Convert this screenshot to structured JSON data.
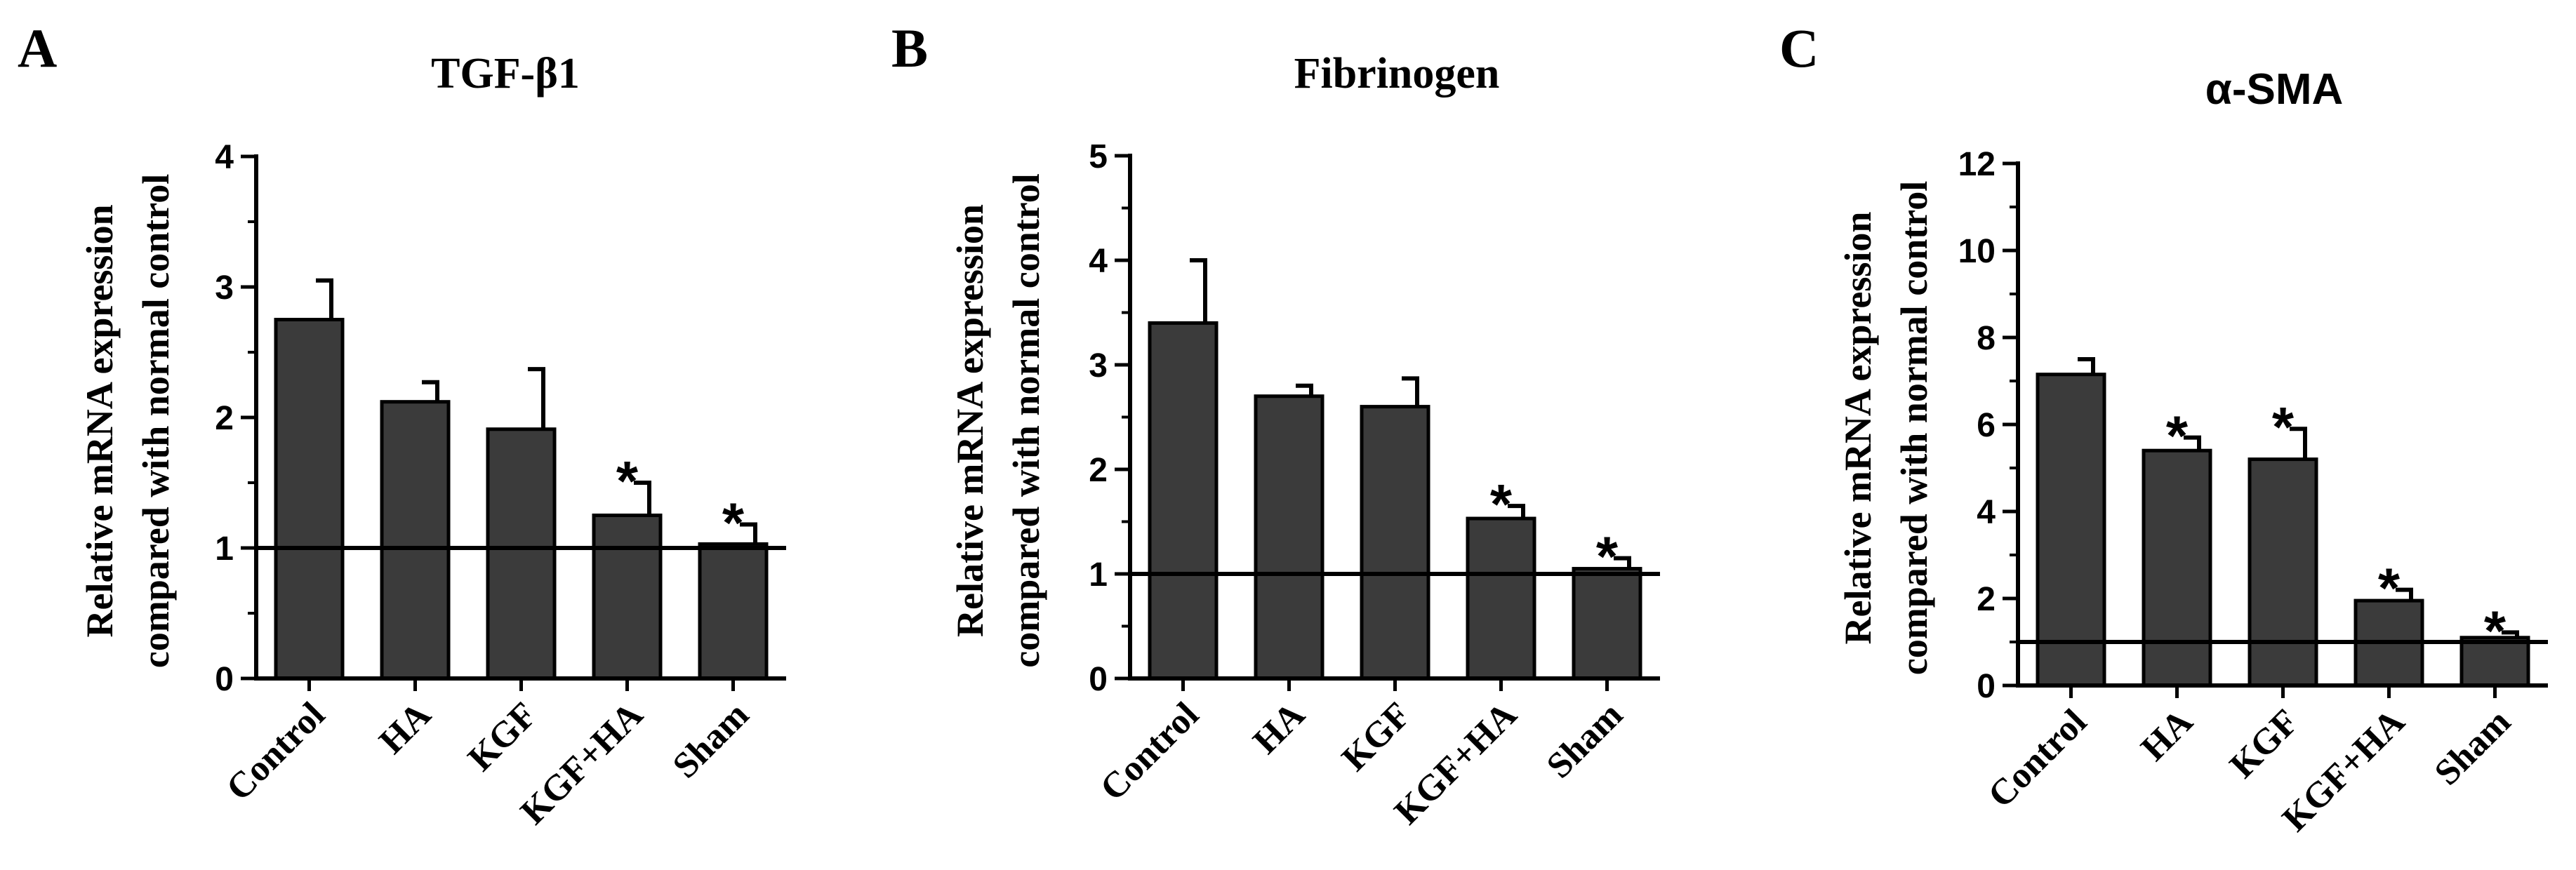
{
  "chart_data": [
    {
      "type": "bar",
      "panel": "A",
      "title": "TGF-β1",
      "ylabel": [
        "Relative mRNA expression",
        "compared with normal control"
      ],
      "categories": [
        "Control",
        "HA",
        "KGF",
        "KGF+HA",
        "Sham"
      ],
      "values": [
        2.75,
        2.12,
        1.91,
        1.25,
        1.03
      ],
      "errors": [
        0.3,
        0.15,
        0.46,
        0.25,
        0.15
      ],
      "significant": [
        "",
        "",
        "",
        "*",
        "*"
      ],
      "ylim": [
        0,
        4
      ],
      "yticks": [
        0,
        1,
        2,
        3,
        4
      ],
      "reference_line": 1,
      "bar_color": "#3b3b3b"
    },
    {
      "type": "bar",
      "panel": "B",
      "title": "Fibrinogen",
      "ylabel": [
        "Relative mRNA expression",
        "compared with normal control"
      ],
      "categories": [
        "Control",
        "HA",
        "KGF",
        "KGF+HA",
        "Sham"
      ],
      "values": [
        3.4,
        2.7,
        2.6,
        1.53,
        1.05
      ],
      "errors": [
        0.6,
        0.1,
        0.27,
        0.12,
        0.1
      ],
      "significant": [
        "",
        "",
        "",
        "*",
        "*"
      ],
      "ylim": [
        0,
        5
      ],
      "yticks": [
        0,
        1,
        2,
        3,
        4,
        5
      ],
      "reference_line": 1,
      "bar_color": "#3b3b3b"
    },
    {
      "type": "bar",
      "panel": "C",
      "title": "α-SMA",
      "ylabel": [
        "Relative mRNA expression",
        "compared with normal control"
      ],
      "categories": [
        "Control",
        "HA",
        "KGF",
        "KGF+HA",
        "Sham"
      ],
      "values": [
        7.15,
        5.4,
        5.2,
        1.95,
        1.1
      ],
      "errors": [
        0.35,
        0.3,
        0.7,
        0.25,
        0.12
      ],
      "significant": [
        "",
        "*",
        "*",
        "*",
        "*"
      ],
      "ylim": [
        0,
        12
      ],
      "yticks": [
        0,
        2,
        4,
        6,
        8,
        10,
        12
      ],
      "reference_line": 1,
      "bar_color": "#3b3b3b"
    }
  ]
}
